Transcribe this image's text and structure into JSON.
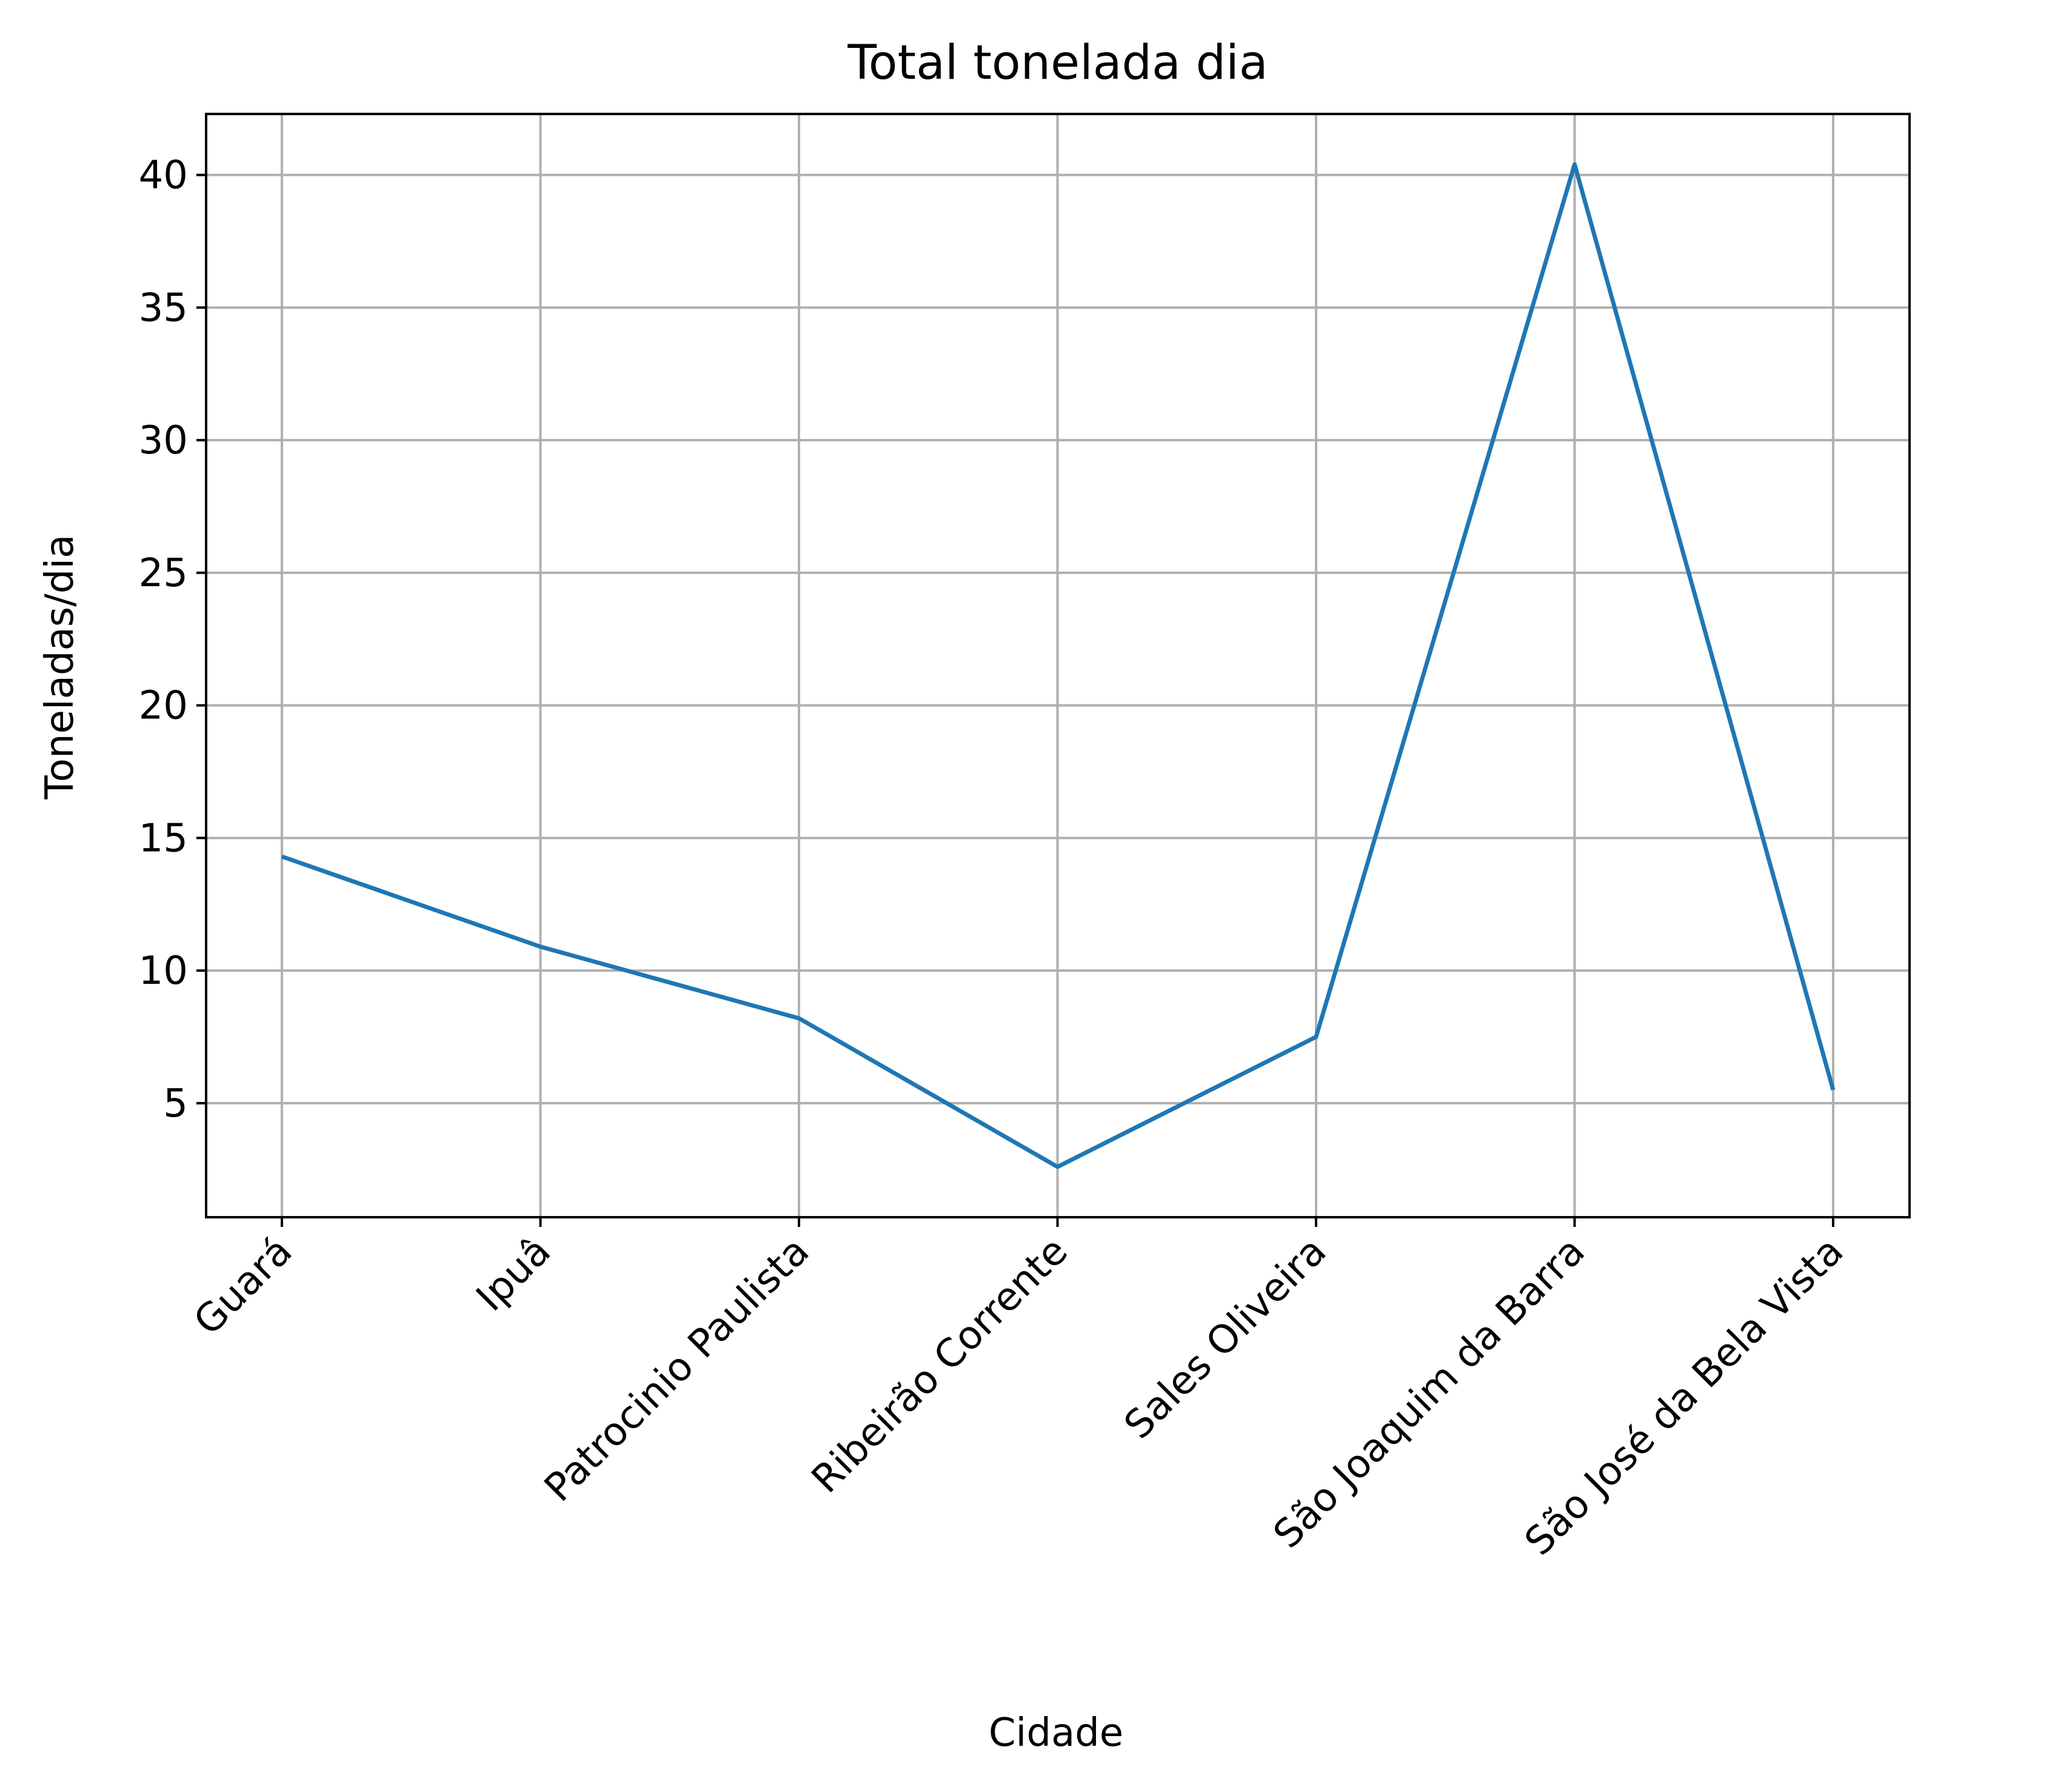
{
  "chart_data": {
    "type": "line",
    "title": "Total tonelada dia",
    "xlabel": "Cidade",
    "ylabel": "Toneladas/dia",
    "categories": [
      "Guará",
      "Ipuâ",
      "Patrocinio Paulista",
      "Ribeirão Corrente",
      "Sales Oliveira",
      "São Joaquim da Barra",
      "São José da Bela Vista"
    ],
    "series": [
      {
        "values": [
          14.3,
          10.9,
          8.2,
          2.6,
          7.5,
          40.4,
          5.5
        ],
        "color": "#1f77b4"
      }
    ],
    "ylim": [
      0.7,
      42.3
    ],
    "yticks": [
      5,
      10,
      15,
      20,
      25,
      30,
      35,
      40
    ],
    "grid": true,
    "grid_color": "#b0b0b0",
    "legend": "none"
  }
}
